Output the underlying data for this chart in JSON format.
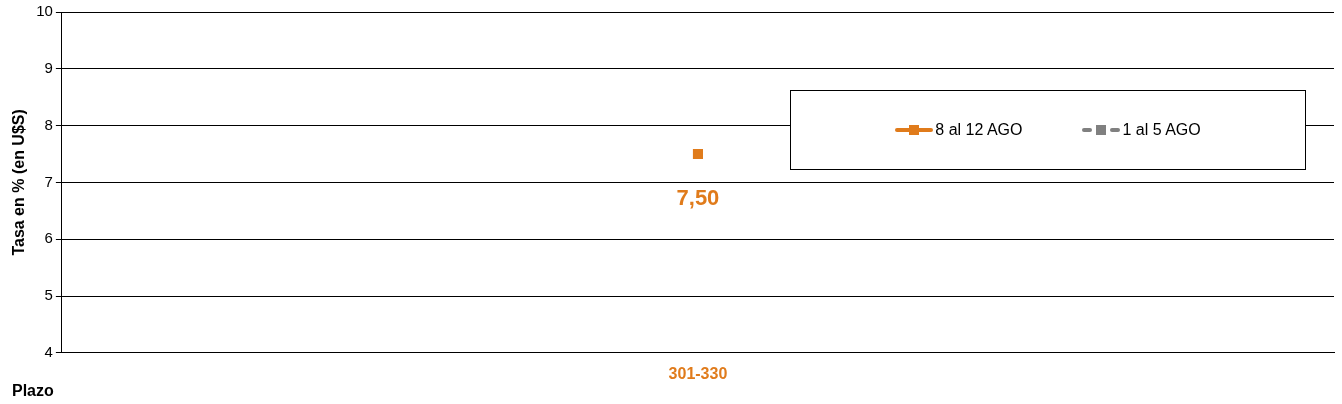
{
  "chart_data": {
    "type": "line",
    "ylabel": "Tasa en % (en U$S)",
    "xlabel": "Plazo",
    "categories": [
      "301-330"
    ],
    "series": [
      {
        "name": "8 al 12 AGO",
        "color": "#e07b1b",
        "values": [
          7.5
        ],
        "value_labels": [
          "7,50"
        ],
        "line_style": "solid"
      },
      {
        "name": "1 al 5 AGO",
        "color": "#808080",
        "values": [
          null
        ],
        "line_style": "dashed"
      }
    ],
    "ylim": [
      4,
      10
    ],
    "yticks": [
      4,
      5,
      6,
      7,
      8,
      9,
      10
    ],
    "grid": "y",
    "legend": "top right",
    "marker": "square"
  }
}
